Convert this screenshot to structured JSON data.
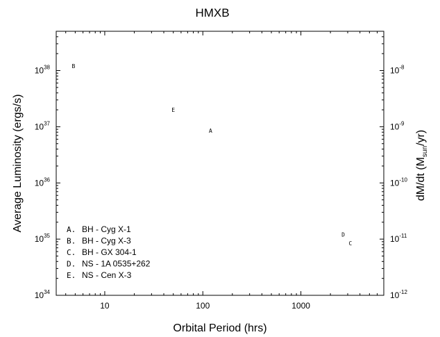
{
  "chart_data": {
    "type": "scatter",
    "title": "HMXB",
    "xlabel": "Orbital Period (hrs)",
    "ylabel": "Average Luminosity (ergs/s)",
    "y2label_main": "dM/dt (M",
    "y2label_sub": "sun",
    "y2label_end": "/yr)",
    "xscale": "log",
    "yscale": "log",
    "xlim": [
      3.2,
      7000
    ],
    "ylim": [
      1e+34,
      5e+38
    ],
    "y2lim": [
      1e-12,
      5e-08
    ],
    "grid": false,
    "x_ticks": [
      {
        "value": 10,
        "label": "10"
      },
      {
        "value": 100,
        "label": "100"
      },
      {
        "value": 1000,
        "label": "1000"
      }
    ],
    "y_ticks": [
      {
        "value": 1e+34,
        "base": "10",
        "exp": "34"
      },
      {
        "value": 1e+35,
        "base": "10",
        "exp": "35"
      },
      {
        "value": 1e+36,
        "base": "10",
        "exp": "36"
      },
      {
        "value": 1e+37,
        "base": "10",
        "exp": "37"
      },
      {
        "value": 1e+38,
        "base": "10",
        "exp": "38"
      }
    ],
    "y2_ticks": [
      {
        "value": 1e-12,
        "base": "10",
        "exp": "-12"
      },
      {
        "value": 1e-11,
        "base": "10",
        "exp": "-11"
      },
      {
        "value": 1e-10,
        "base": "10",
        "exp": "-10"
      },
      {
        "value": 1e-09,
        "base": "10",
        "exp": "-9"
      },
      {
        "value": 1e-08,
        "base": "10",
        "exp": "-8"
      }
    ],
    "points": [
      {
        "marker": "A",
        "x": 120,
        "y": 8.5e+36
      },
      {
        "marker": "B",
        "x": 4.8,
        "y": 1.2e+38
      },
      {
        "marker": "C",
        "x": 3200,
        "y": 8.5e+34
      },
      {
        "marker": "D",
        "x": 2700,
        "y": 1.2e+35
      },
      {
        "marker": "E",
        "x": 50,
        "y": 2e+37
      }
    ],
    "legend_position": "bottom-left",
    "legend": [
      {
        "key": "A.",
        "label": "BH - Cyg X-1"
      },
      {
        "key": "B.",
        "label": "BH - Cyg X-3"
      },
      {
        "key": "C.",
        "label": "BH - GX 304-1"
      },
      {
        "key": "D.",
        "label": "NS - 1A 0535+262"
      },
      {
        "key": "E.",
        "label": "NS - Cen X-3"
      }
    ]
  }
}
